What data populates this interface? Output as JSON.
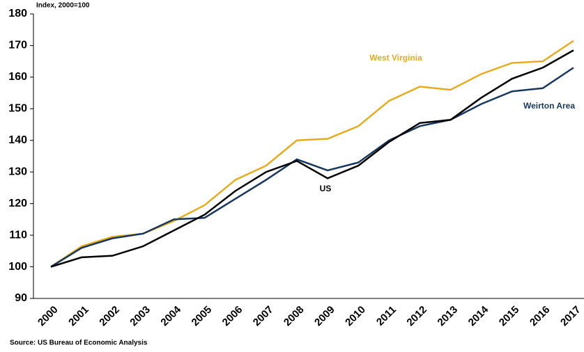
{
  "chart_data": {
    "type": "line",
    "y_axis_label": "Index, 2000=100",
    "source": "Source: US Bureau of Economic Analysis",
    "categories": [
      "2000",
      "2001",
      "2002",
      "2003",
      "2004",
      "2005",
      "2006",
      "2007",
      "2008",
      "2009",
      "2010",
      "2011",
      "2012",
      "2013",
      "2014",
      "2015",
      "2016",
      "2017"
    ],
    "series": [
      {
        "name": "West Virginia",
        "color": "#e6ac1e",
        "values": [
          100,
          106.5,
          109.5,
          110.5,
          114.5,
          119.5,
          127.5,
          132,
          140,
          140.5,
          144.5,
          152.5,
          157,
          156,
          161,
          164.5,
          165,
          171.5
        ]
      },
      {
        "name": "Weirton Area",
        "color": "#17375e",
        "values": [
          100,
          106,
          109,
          110.5,
          115,
          115.5,
          121.5,
          127.5,
          134,
          130.5,
          133,
          140,
          144.5,
          146.5,
          151.5,
          155.5,
          156.5,
          163
        ]
      },
      {
        "name": "US",
        "color": "#000000",
        "values": [
          100,
          103,
          103.5,
          106.5,
          111.5,
          116.5,
          124,
          130,
          133.5,
          128,
          132,
          139.5,
          145.5,
          146.5,
          153.5,
          159.5,
          163,
          168.5
        ]
      }
    ],
    "ylim": [
      90,
      180
    ],
    "yticks": [
      90,
      100,
      110,
      120,
      130,
      140,
      150,
      160,
      170,
      180
    ],
    "grid": false
  }
}
